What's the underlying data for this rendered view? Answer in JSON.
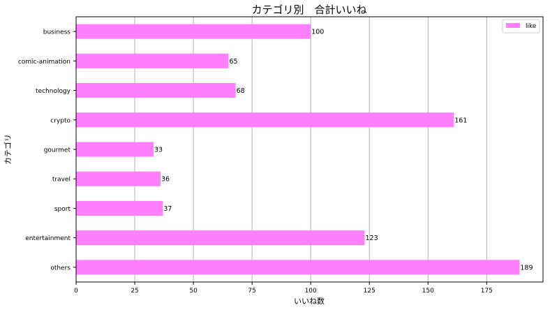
{
  "chart_data": {
    "type": "bar",
    "orientation": "horizontal",
    "title": "カテゴリ別　合計いいね",
    "xlabel": "いいね数",
    "ylabel": "カテゴリ",
    "categories": [
      "business",
      "comic-animation",
      "technology",
      "crypto",
      "gourmet",
      "travel",
      "sport",
      "entertainment",
      "others"
    ],
    "series": [
      {
        "name": "like",
        "values": [
          100,
          65,
          68,
          161,
          33,
          36,
          37,
          123,
          189
        ]
      }
    ],
    "xlim": [
      0,
      199
    ],
    "xticks": [
      0,
      25,
      50,
      75,
      100,
      125,
      150,
      175
    ],
    "grid": "vertical",
    "legend_position": "top-right",
    "bar_color": "#ff80ff"
  }
}
